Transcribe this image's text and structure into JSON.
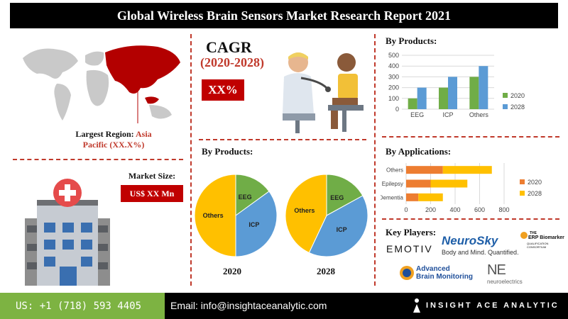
{
  "title": "Global Wireless Brain Sensors Market Research Report 2021",
  "region": {
    "label": "Largest Region:",
    "name": "Asia",
    "share": "Pacific (XX.X%)"
  },
  "cagr": {
    "title": "CAGR",
    "years": "(2020-2028)",
    "value": "XX%"
  },
  "market_size": {
    "label": "Market Size:",
    "value": "US$ XX Mn"
  },
  "pie_section": {
    "heading": "By Products:",
    "year1": "2020",
    "year2": "2028"
  },
  "bar_section": {
    "heading": "By Products:"
  },
  "app_section": {
    "heading": "By Applications:"
  },
  "key_players": {
    "heading": "Key Players:",
    "names": [
      "EMOTIV",
      "NeuroSky",
      "Body and Mind. Quantified.",
      "THE",
      "ERP Biomarker",
      "QUALIFICATION CONSORTIUM",
      "Advanced",
      "Brain Monitoring",
      "NE",
      "neuroelectrics"
    ]
  },
  "footer": {
    "phone": "US: +1 (718) 593 4405",
    "email": "Email: info@insightaceanalytic.com",
    "brand": "INSIGHT ACE ANALYTIC"
  },
  "colors": {
    "green": "#70ad47",
    "blue": "#5b9bd5",
    "orange": "#ed7d31",
    "yellow": "#ffc000",
    "red": "#c00000"
  },
  "chart_data": [
    {
      "type": "bar",
      "categories": [
        "EEG",
        "ICP",
        "Others"
      ],
      "series": [
        {
          "name": "2020",
          "values": [
            100,
            200,
            300
          ]
        },
        {
          "name": "2028",
          "values": [
            200,
            300,
            400
          ]
        }
      ],
      "ylim": [
        0,
        500
      ],
      "yticks": [
        "0",
        "100",
        "200",
        "300",
        "400",
        "500"
      ],
      "grid": true,
      "legend": "right"
    },
    {
      "type": "bar",
      "orientation": "horizontal",
      "stacked": true,
      "categories": [
        "Others",
        "Epilepsy",
        "Dementia"
      ],
      "series": [
        {
          "name": "2020",
          "values": [
            300,
            200,
            100
          ]
        },
        {
          "name": "2028",
          "values": [
            400,
            300,
            200
          ]
        }
      ],
      "xlim": [
        0,
        800
      ],
      "xticks": [
        "0",
        "200",
        "400",
        "600",
        "800"
      ],
      "legend": "right"
    },
    {
      "type": "pie",
      "title": "2020",
      "labels": [
        "EEG",
        "ICP",
        "Others"
      ],
      "values": [
        15,
        35,
        50
      ]
    },
    {
      "type": "pie",
      "title": "2028",
      "labels": [
        "EEG",
        "ICP",
        "Others"
      ],
      "values": [
        17,
        40,
        43
      ]
    }
  ]
}
